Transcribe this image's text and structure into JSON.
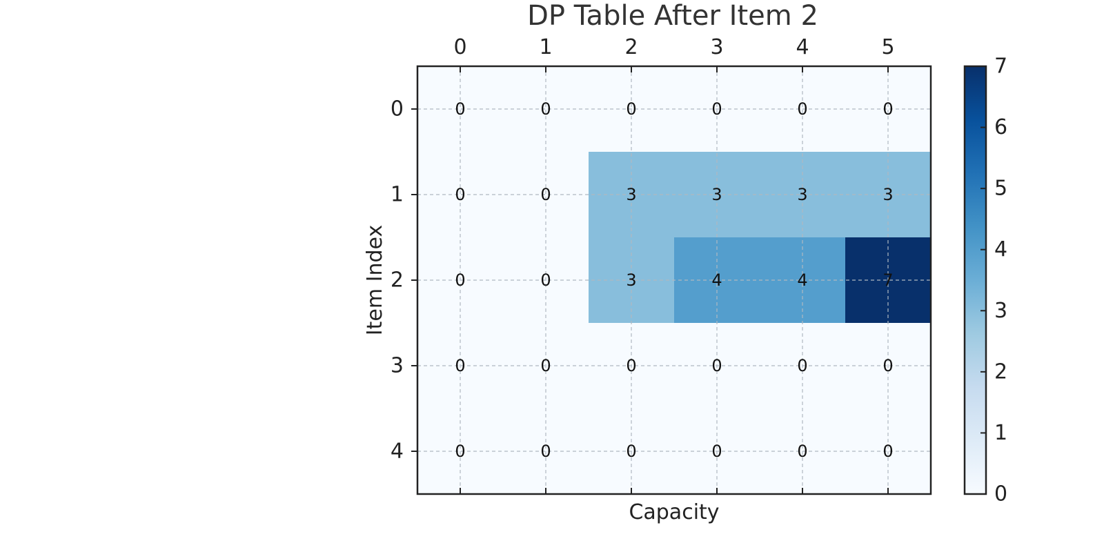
{
  "chart_data": {
    "type": "heatmap",
    "title": "DP Table After Item 2",
    "xlabel": "Capacity",
    "ylabel": "Item Index",
    "x_ticks": [
      "0",
      "1",
      "2",
      "3",
      "4",
      "5"
    ],
    "y_ticks": [
      "0",
      "1",
      "2",
      "3",
      "4"
    ],
    "values": [
      [
        0,
        0,
        0,
        0,
        0,
        0
      ],
      [
        0,
        0,
        3,
        3,
        3,
        3
      ],
      [
        0,
        0,
        3,
        4,
        4,
        7
      ],
      [
        0,
        0,
        0,
        0,
        0,
        0
      ],
      [
        0,
        0,
        0,
        0,
        0,
        0
      ]
    ],
    "colormap": "Blues",
    "color_range": [
      0,
      7
    ],
    "colorbar_ticks": [
      "0",
      "1",
      "2",
      "3",
      "4",
      "5",
      "6",
      "7"
    ],
    "x_axis_position": "top",
    "grid": true,
    "cell_annotations": true
  }
}
